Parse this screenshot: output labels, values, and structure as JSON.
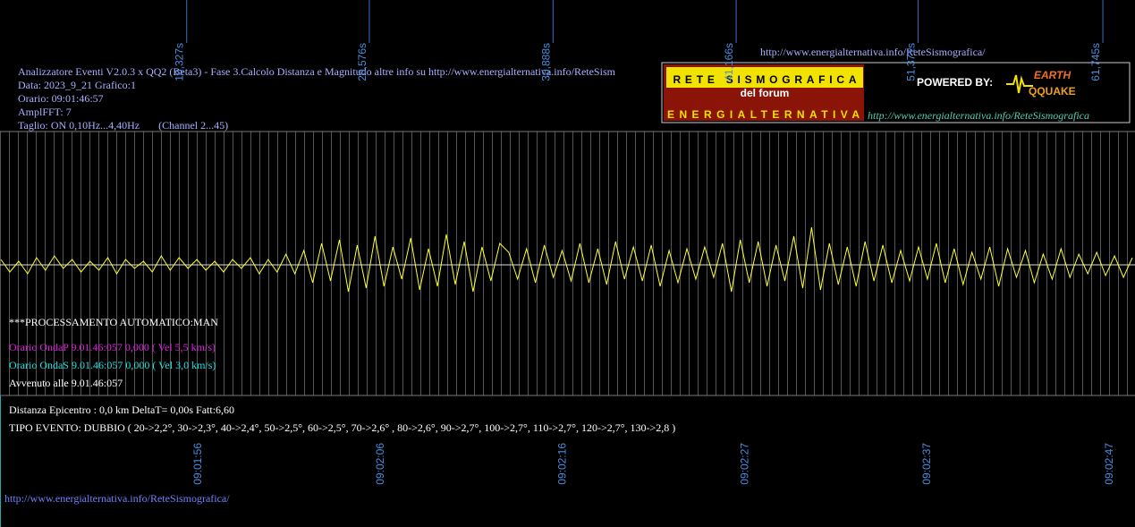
{
  "header": {
    "lines": [
      "Analizzatore Eventi V2.0.3 x QQ2 (Beta3) - Fase 3.Calcolo Distanza e Magnitudo altre info su http://www.energialternativa.info/ReteSism",
      "Data: 2023_9_21 Grafico:1",
      "Orario: 09:01:46:57",
      "AmplFFT: 7",
      "Taglio: ON 0,10Hz...4,40Hz       (Channel 2...45)"
    ],
    "url": "http://www.energialternativa.info/ReteSismografica/"
  },
  "logo": {
    "title": "RETE SISMOGRAFICA",
    "subtitle": "del forum",
    "name": "ENERGIALTERNATIVA",
    "powered": "POWERED BY:",
    "brand_top": "EARTH",
    "brand_bottom": "QQUAKE",
    "url": "http://www.energialternativa.info/ReteSismografica"
  },
  "chart_data": {
    "type": "line",
    "xlim": [
      0.05,
      63.75
    ],
    "ylim": [
      -30,
      30
    ],
    "xticks": [
      {
        "value": 10.327,
        "label": "10,327s"
      },
      {
        "value": 20.576,
        "label": "20,576s"
      },
      {
        "value": 30.888,
        "label": "30,888s"
      },
      {
        "value": 41.166,
        "label": "41,166s"
      },
      {
        "value": 51.371,
        "label": "51,371s"
      },
      {
        "value": 61.745,
        "label": "61,745s"
      }
    ],
    "time_labels": [
      "09:01:56",
      "09:02:06",
      "09:02:16",
      "09:02:27",
      "09:02:37",
      "09:02:47"
    ],
    "series": [
      {
        "color": "#ffff33",
        "x": [
          0.1,
          0.6,
          1.1,
          1.6,
          2.1,
          2.6,
          3.1,
          3.6,
          4.1,
          4.6,
          5.1,
          5.6,
          6.1,
          6.6,
          7.1,
          7.6,
          8.1,
          8.6,
          9.1,
          9.6,
          10.1,
          10.6,
          11.1,
          11.6,
          12.1,
          12.6,
          13.1,
          13.6,
          14.1,
          14.6,
          15.1,
          15.6,
          16.1,
          16.6,
          17.1,
          17.6,
          18.1,
          18.6,
          19.1,
          19.6,
          20.1,
          20.6,
          21.1,
          21.6,
          22.1,
          22.6,
          23.1,
          23.6,
          24.1,
          24.6,
          25.1,
          25.6,
          26.1,
          26.6,
          27.1,
          27.6,
          28.1,
          28.6,
          29.1,
          29.6,
          30.1,
          30.6,
          31.1,
          31.6,
          32.1,
          32.6,
          33.1,
          33.6,
          34.1,
          34.6,
          35.1,
          35.6,
          36.1,
          36.6,
          37.1,
          37.6,
          38.1,
          38.6,
          39.1,
          39.6,
          40.1,
          40.6,
          41.1,
          41.6,
          42.1,
          42.6,
          43.1,
          43.6,
          44.1,
          44.6,
          45.1,
          45.6,
          46.1,
          46.6,
          47.1,
          47.6,
          48.1,
          48.6,
          49.1,
          49.6,
          50.1,
          50.6,
          51.1,
          51.6,
          52.1,
          52.6,
          53.1,
          53.6,
          54.1,
          54.6,
          55.1,
          55.6,
          56.1,
          56.6,
          57.1,
          57.6,
          58.1,
          58.6,
          59.1,
          59.6,
          60.1,
          60.6,
          61.1,
          61.6,
          62.1,
          62.6,
          63.1,
          63.6
        ],
        "values": [
          3,
          -4,
          2,
          -5,
          4,
          -3,
          5,
          -2,
          3,
          -4,
          2,
          -3,
          4,
          -5,
          3,
          -2,
          2,
          -4,
          5,
          -3,
          4,
          -2,
          3,
          -3,
          2,
          -4,
          3,
          -2,
          4,
          -5,
          3,
          -4,
          6,
          -5,
          8,
          -10,
          12,
          -9,
          14,
          -15,
          11,
          -13,
          16,
          -12,
          10,
          -8,
          15,
          -14,
          9,
          -12,
          17,
          -11,
          13,
          -15,
          10,
          -9,
          12,
          7,
          -8,
          9,
          -10,
          11,
          -7,
          8,
          -9,
          12,
          -10,
          9,
          -11,
          13,
          -8,
          10,
          -9,
          11,
          -12,
          8,
          -10,
          9,
          -8,
          10,
          -7,
          12,
          -15,
          14,
          -10,
          13,
          -12,
          11,
          -9,
          16,
          -13,
          21,
          -14,
          12,
          -11,
          10,
          -12,
          13,
          -9,
          11,
          -10,
          8,
          -9,
          10,
          -8,
          12,
          -10,
          9,
          -11,
          7,
          -8,
          10,
          -12,
          9,
          -7,
          8,
          -10,
          6,
          -8,
          9,
          -7,
          6,
          -5,
          7,
          -6,
          5,
          -7,
          4
        ]
      }
    ]
  },
  "info": {
    "processing": "***PROCESSAMENTO AUTOMATICO:MAN",
    "wave_p": "Orario OndaP 9.01.46:057  0,000 ( Vel 5,5 km/s)",
    "wave_s": "Orario OndaS 9.01.46:057  0,000 ( Vel 3,0 km/s)",
    "occurred": "Avvenuto alle 9.01.46:057",
    "distance": "Distanza Epicentro : 0,0 km DeltaT= 0,00s  Fatt:6,60",
    "event_type": "TIPO EVENTO: DUBBIO ( 20->2,2°, 30->2,3°, 40->2,4°, 50->2,5°, 60->2,5°, 70->2,6° , 80->2,6°, 90->2,7°, 100->2,7°, 110->2,7°, 120->2,7°, 130->2,8 )"
  },
  "footer_url": "http://www.energialternativa.info/ReteSismografica/"
}
